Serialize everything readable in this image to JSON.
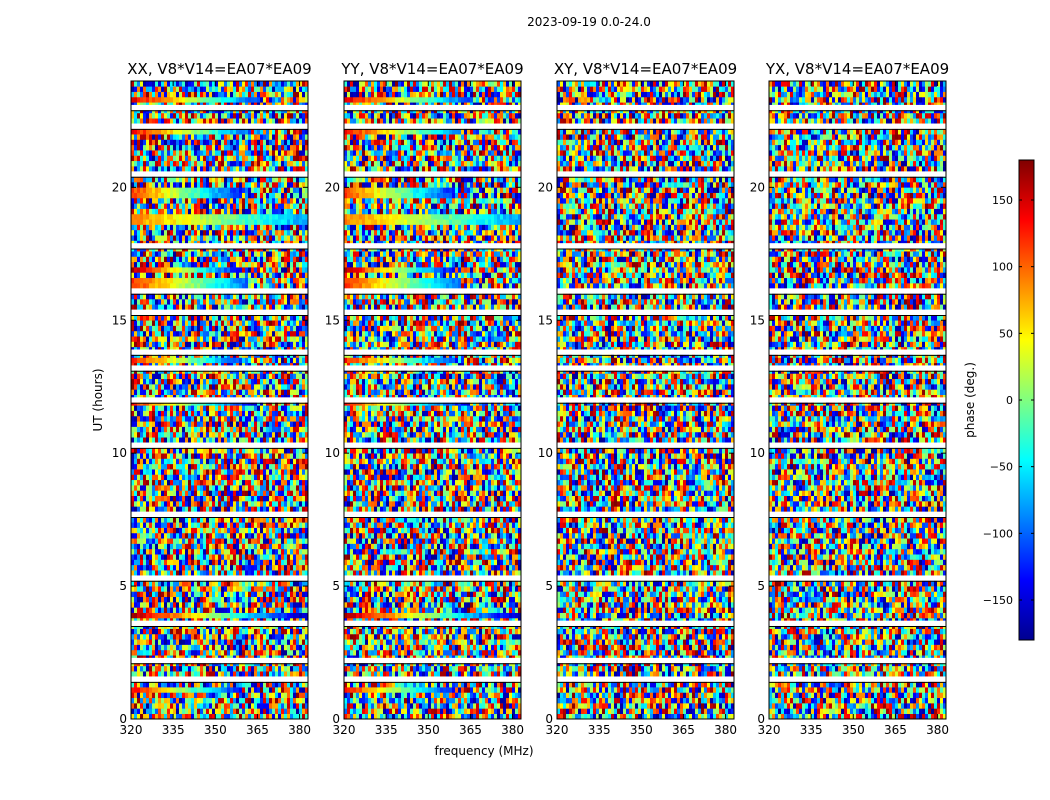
{
  "suptitle": "2023-09-19 0.0-24.0",
  "chart_data": {
    "type": "heatmap",
    "xlabel": "frequency (MHz)",
    "ylabel": "UT (hours)",
    "xlim": [
      320,
      383
    ],
    "ylim": [
      0,
      24
    ],
    "x_ticks": [
      320,
      335,
      350,
      365,
      380
    ],
    "y_ticks": [
      0,
      5,
      10,
      15,
      20
    ],
    "colorbar": {
      "label": "phase (deg.)",
      "range": [
        -180,
        180
      ],
      "ticks": [
        150,
        100,
        50,
        0,
        -50,
        -100,
        -150
      ],
      "tick_labels": [
        "150",
        "100",
        "50",
        "0",
        "−50",
        "−100",
        "−150"
      ],
      "colormap": "jet",
      "colors": [
        "#00008f",
        "#0000ff",
        "#0080ff",
        "#00ffff",
        "#80ff80",
        "#ffff00",
        "#ff8000",
        "#ff0000",
        "#800000"
      ]
    },
    "flagged_color": "#ffffff",
    "panels": [
      {
        "title": "XX, V8*V14=EA07*EA09",
        "polarization": "XX",
        "coherent": true
      },
      {
        "title": "YY, V8*V14=EA07*EA09",
        "polarization": "YY",
        "coherent": true
      },
      {
        "title": "XY, V8*V14=EA07*EA09",
        "polarization": "XY",
        "coherent": false
      },
      {
        "title": "YX, V8*V14=EA07*EA09",
        "polarization": "YX",
        "coherent": false
      }
    ],
    "flagged_ut_hours": [
      23.0,
      22.3,
      20.5,
      17.8,
      16.1,
      15.3,
      13.8,
      13.2,
      12.0,
      10.3,
      7.7,
      5.3,
      3.6,
      2.2,
      1.5
    ],
    "coherent_bands": [
      {
        "ut": 23.3,
        "freq_from": 320,
        "freq_to": 366,
        "phase_low": 150,
        "phase_high": -120
      },
      {
        "ut": 22.2,
        "freq_from": 320,
        "freq_to": 362,
        "phase_low": 140,
        "phase_high": -100
      },
      {
        "ut": 19.8,
        "freq_from": 320,
        "freq_to": 360,
        "phase_low": 120,
        "phase_high": -130
      },
      {
        "ut": 18.8,
        "freq_from": 320,
        "freq_to": 383,
        "phase_low": 90,
        "phase_high": -80
      },
      {
        "ut": 16.9,
        "freq_from": 320,
        "freq_to": 360,
        "phase_low": 170,
        "phase_high": -150
      },
      {
        "ut": 16.4,
        "freq_from": 320,
        "freq_to": 362,
        "phase_low": 120,
        "phase_high": -100
      },
      {
        "ut": 13.5,
        "freq_from": 320,
        "freq_to": 360,
        "phase_low": 130,
        "phase_high": -120
      },
      {
        "ut": 11.9,
        "freq_from": 320,
        "freq_to": 365,
        "phase_low": 130,
        "phase_high": -150
      },
      {
        "ut": 3.9,
        "freq_from": 320,
        "freq_to": 383,
        "phase_low": 170,
        "phase_high": -170
      },
      {
        "ut": 1.1,
        "freq_from": 320,
        "freq_to": 360,
        "phase_low": 140,
        "phase_high": -140
      }
    ]
  }
}
